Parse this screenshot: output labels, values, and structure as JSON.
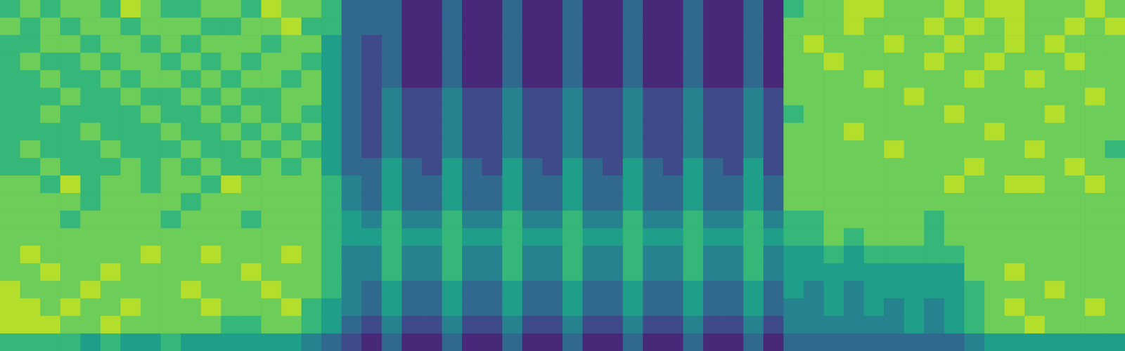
{
  "chart_data": {
    "type": "heatmap",
    "tick_labels": false,
    "zlim": [
      0,
      9
    ],
    "cells": [
      [
        6,
        7,
        6,
        7,
        7,
        6,
        8,
        7,
        6,
        6,
        7,
        7,
        6,
        8,
        7,
        7,
        6,
        3,
        3,
        3,
        1,
        1,
        3,
        1,
        1,
        3,
        1,
        1,
        3,
        1,
        1,
        3,
        1,
        1,
        3,
        1,
        1,
        3,
        1,
        6,
        7,
        7,
        8,
        8,
        7,
        7,
        7,
        8,
        7,
        8,
        8,
        7,
        7,
        7,
        8,
        7
      ],
      [
        7,
        6,
        7,
        6,
        7,
        7,
        6,
        7,
        7,
        7,
        6,
        6,
        7,
        7,
        8,
        6,
        6,
        3,
        3,
        3,
        1,
        1,
        3,
        1,
        1,
        3,
        1,
        1,
        3,
        1,
        1,
        3,
        1,
        1,
        3,
        1,
        1,
        3,
        1,
        7,
        7,
        7,
        8,
        7,
        7,
        7,
        8,
        7,
        8,
        7,
        8,
        7,
        7,
        8,
        7,
        8
      ],
      [
        6,
        6,
        7,
        7,
        6,
        7,
        7,
        6,
        7,
        6,
        7,
        7,
        7,
        6,
        7,
        7,
        5,
        3,
        2,
        3,
        1,
        1,
        3,
        1,
        1,
        3,
        1,
        1,
        3,
        1,
        1,
        3,
        1,
        1,
        3,
        1,
        1,
        3,
        1,
        7,
        8,
        7,
        7,
        7,
        8,
        7,
        7,
        8,
        7,
        7,
        8,
        7,
        8,
        7,
        7,
        7
      ],
      [
        6,
        7,
        6,
        6,
        7,
        6,
        7,
        7,
        6,
        7,
        6,
        7,
        6,
        7,
        7,
        6,
        5,
        3,
        2,
        3,
        1,
        1,
        3,
        1,
        1,
        3,
        1,
        1,
        3,
        1,
        1,
        3,
        1,
        1,
        3,
        1,
        1,
        3,
        1,
        7,
        7,
        8,
        7,
        7,
        7,
        7,
        8,
        7,
        7,
        8,
        7,
        7,
        7,
        8,
        7,
        7
      ],
      [
        6,
        6,
        7,
        6,
        6,
        7,
        6,
        7,
        7,
        6,
        7,
        6,
        7,
        7,
        6,
        7,
        5,
        3,
        2,
        3,
        1,
        1,
        3,
        1,
        1,
        3,
        1,
        1,
        3,
        1,
        1,
        3,
        1,
        1,
        3,
        1,
        1,
        3,
        1,
        7,
        7,
        7,
        7,
        8,
        7,
        7,
        7,
        7,
        8,
        7,
        7,
        8,
        7,
        7,
        7,
        7
      ],
      [
        6,
        6,
        6,
        7,
        6,
        6,
        7,
        6,
        6,
        7,
        6,
        7,
        6,
        6,
        7,
        7,
        5,
        3,
        2,
        4,
        2,
        2,
        4,
        2,
        2,
        4,
        2,
        2,
        4,
        2,
        2,
        4,
        2,
        2,
        4,
        2,
        2,
        4,
        2,
        7,
        7,
        7,
        7,
        7,
        7,
        8,
        7,
        7,
        7,
        7,
        7,
        7,
        7,
        7,
        8,
        7
      ],
      [
        6,
        6,
        7,
        6,
        6,
        6,
        6,
        7,
        6,
        6,
        7,
        6,
        7,
        6,
        7,
        6,
        5,
        3,
        2,
        4,
        2,
        2,
        4,
        2,
        2,
        4,
        2,
        2,
        4,
        2,
        2,
        4,
        2,
        2,
        4,
        2,
        2,
        4,
        2,
        6,
        7,
        7,
        7,
        7,
        7,
        7,
        7,
        8,
        7,
        7,
        7,
        7,
        8,
        7,
        7,
        7
      ],
      [
        6,
        6,
        6,
        6,
        7,
        6,
        6,
        6,
        7,
        6,
        6,
        7,
        6,
        7,
        6,
        7,
        5,
        3,
        2,
        4,
        2,
        2,
        4,
        2,
        2,
        4,
        2,
        2,
        4,
        2,
        2,
        4,
        2,
        2,
        4,
        2,
        2,
        4,
        2,
        7,
        7,
        7,
        8,
        7,
        7,
        7,
        7,
        7,
        7,
        8,
        7,
        7,
        7,
        7,
        7,
        7
      ],
      [
        6,
        7,
        6,
        6,
        6,
        7,
        6,
        6,
        6,
        7,
        6,
        6,
        7,
        6,
        7,
        6,
        5,
        3,
        2,
        4,
        2,
        2,
        4,
        2,
        2,
        4,
        2,
        2,
        4,
        2,
        2,
        4,
        2,
        2,
        4,
        2,
        2,
        4,
        2,
        7,
        7,
        7,
        7,
        7,
        8,
        7,
        7,
        7,
        7,
        7,
        7,
        8,
        7,
        7,
        7,
        6
      ],
      [
        6,
        6,
        7,
        6,
        6,
        6,
        7,
        6,
        7,
        6,
        7,
        6,
        6,
        7,
        6,
        7,
        5,
        3,
        3,
        5,
        3,
        2,
        5,
        3,
        2,
        5,
        3,
        2,
        5,
        3,
        2,
        5,
        3,
        2,
        5,
        3,
        2,
        5,
        2,
        7,
        7,
        7,
        7,
        7,
        7,
        7,
        7,
        7,
        8,
        7,
        7,
        7,
        7,
        8,
        7,
        7
      ],
      [
        7,
        7,
        6,
        8,
        6,
        7,
        7,
        6,
        7,
        7,
        6,
        8,
        7,
        7,
        7,
        7,
        6,
        4,
        3,
        5,
        3,
        3,
        5,
        3,
        3,
        5,
        3,
        3,
        5,
        3,
        3,
        5,
        3,
        3,
        5,
        3,
        3,
        5,
        3,
        7,
        7,
        7,
        7,
        7,
        7,
        7,
        7,
        8,
        7,
        7,
        8,
        8,
        7,
        7,
        8,
        7
      ],
      [
        7,
        7,
        7,
        7,
        6,
        7,
        7,
        7,
        7,
        6,
        7,
        7,
        7,
        7,
        7,
        7,
        6,
        4,
        3,
        5,
        3,
        3,
        5,
        3,
        3,
        5,
        3,
        3,
        5,
        3,
        3,
        5,
        3,
        3,
        5,
        3,
        3,
        5,
        3,
        7,
        7,
        7,
        7,
        7,
        7,
        7,
        7,
        7,
        7,
        7,
        7,
        7,
        7,
        7,
        7,
        7
      ],
      [
        7,
        7,
        7,
        6,
        7,
        7,
        7,
        7,
        6,
        7,
        7,
        7,
        6,
        7,
        7,
        7,
        6,
        5,
        4,
        6,
        4,
        4,
        6,
        4,
        4,
        6,
        4,
        4,
        6,
        4,
        4,
        6,
        4,
        4,
        6,
        4,
        4,
        6,
        4,
        6,
        6,
        7,
        7,
        7,
        7,
        7,
        6,
        7,
        7,
        7,
        7,
        7,
        7,
        7,
        7,
        7
      ],
      [
        7,
        7,
        7,
        7,
        7,
        7,
        7,
        7,
        7,
        7,
        7,
        7,
        7,
        7,
        7,
        7,
        6,
        5,
        5,
        6,
        5,
        5,
        6,
        5,
        5,
        6,
        5,
        5,
        6,
        5,
        5,
        6,
        5,
        5,
        6,
        5,
        5,
        6,
        5,
        6,
        6,
        7,
        6,
        7,
        7,
        7,
        6,
        7,
        7,
        7,
        7,
        7,
        7,
        7,
        7,
        7
      ],
      [
        7,
        8,
        7,
        7,
        7,
        7,
        7,
        8,
        7,
        7,
        8,
        7,
        7,
        7,
        8,
        7,
        6,
        4,
        4,
        6,
        4,
        4,
        6,
        4,
        4,
        6,
        4,
        4,
        6,
        4,
        4,
        6,
        4,
        4,
        6,
        4,
        4,
        6,
        4,
        5,
        5,
        6,
        5,
        6,
        6,
        6,
        6,
        6,
        7,
        7,
        7,
        7,
        7,
        7,
        7,
        7
      ],
      [
        7,
        7,
        8,
        7,
        7,
        8,
        7,
        7,
        7,
        7,
        7,
        7,
        8,
        7,
        7,
        7,
        6,
        4,
        4,
        6,
        4,
        4,
        6,
        4,
        4,
        6,
        4,
        4,
        6,
        4,
        4,
        6,
        4,
        4,
        6,
        4,
        4,
        6,
        4,
        5,
        5,
        5,
        5,
        5,
        5,
        5,
        5,
        5,
        7,
        7,
        8,
        7,
        7,
        7,
        7,
        7
      ],
      [
        8,
        7,
        7,
        7,
        8,
        7,
        7,
        7,
        7,
        8,
        7,
        7,
        7,
        8,
        7,
        7,
        6,
        4,
        3,
        5,
        3,
        3,
        5,
        3,
        3,
        5,
        3,
        3,
        5,
        3,
        3,
        5,
        3,
        3,
        5,
        3,
        3,
        5,
        3,
        5,
        4,
        5,
        4,
        5,
        5,
        5,
        5,
        5,
        6,
        7,
        7,
        7,
        8,
        7,
        7,
        7
      ],
      [
        8,
        8,
        7,
        8,
        7,
        7,
        8,
        7,
        7,
        7,
        8,
        7,
        7,
        7,
        8,
        6,
        5,
        4,
        3,
        5,
        3,
        3,
        5,
        3,
        3,
        5,
        3,
        3,
        5,
        3,
        3,
        5,
        3,
        3,
        5,
        3,
        3,
        5,
        3,
        4,
        4,
        5,
        4,
        5,
        4,
        5,
        4,
        5,
        6,
        7,
        8,
        7,
        7,
        7,
        8,
        7
      ],
      [
        8,
        8,
        8,
        7,
        7,
        8,
        7,
        7,
        7,
        7,
        7,
        6,
        6,
        7,
        7,
        6,
        5,
        3,
        2,
        4,
        2,
        2,
        4,
        2,
        2,
        4,
        2,
        2,
        4,
        2,
        2,
        4,
        2,
        2,
        4,
        2,
        2,
        4,
        2,
        4,
        4,
        4,
        4,
        4,
        4,
        5,
        4,
        5,
        6,
        7,
        7,
        8,
        7,
        7,
        7,
        7
      ],
      [
        6,
        6,
        6,
        6,
        5,
        6,
        5,
        5,
        6,
        5,
        5,
        5,
        5,
        5,
        5,
        4,
        3,
        2,
        1,
        3,
        1,
        1,
        3,
        1,
        1,
        3,
        1,
        1,
        3,
        1,
        1,
        3,
        1,
        1,
        3,
        1,
        1,
        3,
        1,
        3,
        3,
        3,
        3,
        3,
        3,
        3,
        3,
        3,
        4,
        5,
        5,
        5,
        5,
        5,
        5,
        5
      ]
    ]
  }
}
